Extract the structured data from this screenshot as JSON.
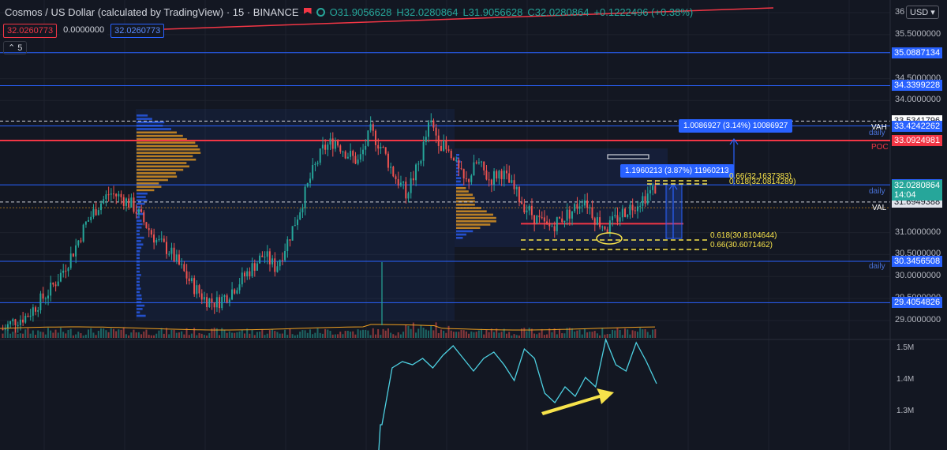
{
  "header": {
    "symbol": "Cosmos / US Dollar (calculated by TradingView) · 15 · BINANCE",
    "open": "O31.9056628",
    "high": "H32.0280864",
    "low": "L31.9056628",
    "close": "C32.0280864",
    "change": "+0.1222496 (+0.38%)"
  },
  "badges": {
    "a": "32.0260773",
    "b": "0.0000000",
    "c": "32.0260773"
  },
  "collapse_label": "5",
  "currency": "USD",
  "price_axis": {
    "ticks": [
      {
        "v": 36.0,
        "label": "36"
      },
      {
        "v": 35.5,
        "label": "35.5000000"
      },
      {
        "v": 34.5,
        "label": "34.5000000"
      },
      {
        "v": 34.0,
        "label": "34.0000000"
      },
      {
        "v": 31.0,
        "label": "31.0000000"
      },
      {
        "v": 30.5,
        "label": "30.5000000"
      },
      {
        "v": 30.0,
        "label": "30.0000000"
      },
      {
        "v": 29.5,
        "label": "29.5000000"
      },
      {
        "v": 29.0,
        "label": "29.0000000"
      }
    ],
    "price_labels": [
      {
        "v": 35.0887134,
        "label": "35.0887134",
        "style": "blue"
      },
      {
        "v": 34.3399228,
        "label": "34.3399228",
        "style": "blue"
      },
      {
        "v": 33.5341796,
        "label": "33.5341796",
        "style": "white"
      },
      {
        "v": 33.4242262,
        "label": "33.4242262",
        "style": "blue"
      },
      {
        "v": 33.0924981,
        "label": "33.0924981",
        "style": "red"
      },
      {
        "v": 32.0850073,
        "label": "32.0850073",
        "style": "blue"
      },
      {
        "v": 31.6949388,
        "label": "31.6949388",
        "style": "white2"
      },
      {
        "v": 30.3456508,
        "label": "30.3456508",
        "style": "blue"
      },
      {
        "v": 29.4054826,
        "label": "29.4054826",
        "style": "blue"
      }
    ],
    "last_price": {
      "v": 32.0280864,
      "label": "32.0280864",
      "countdown": "14:04"
    }
  },
  "volume_axis": {
    "ticks": [
      {
        "v": 1.5,
        "label": "1.5M"
      },
      {
        "v": 1.4,
        "label": "1.4M"
      },
      {
        "v": 1.3,
        "label": "1.3M"
      }
    ]
  },
  "side_labels": {
    "vah": "VAH",
    "val": "VAL",
    "poc": "POC",
    "daily": "daily"
  },
  "measure_boxes": {
    "upper": "1.0086927 (3.14%) 10086927",
    "lower": "1.1960213 (3.87%) 11960213"
  },
  "fib_labels": {
    "f066_top": "0.66(32.1637383)",
    "f0618_top": "0.618(32.0814289)",
    "f0618_bot": "0.618(30.8104644)",
    "f066_bot": "0.66(30.6071462)"
  },
  "colors": {
    "up": "#26a69a",
    "down": "#ef5350",
    "blue": "#2962ff",
    "red": "#f23645",
    "yellow": "#f7e34b",
    "orange": "#f0a020",
    "bg": "#131722"
  },
  "chart_data": {
    "type": "candlestick",
    "title": "Cosmos / US Dollar (calculated by TradingView)",
    "ylim": [
      28.5,
      36.1
    ],
    "horizontal_levels": [
      35.0887134,
      34.3399228,
      33.5341796,
      33.4242262,
      33.0924981,
      32.0850073,
      31.6949388,
      30.3456508,
      29.4054826
    ],
    "close_path": [
      28.8,
      29.0,
      29.1,
      29.4,
      29.7,
      30.1,
      30.6,
      31.2,
      31.6,
      31.9,
      31.8,
      31.6,
      31.2,
      30.8,
      30.6,
      30.2,
      29.8,
      29.5,
      29.4,
      29.6,
      29.9,
      30.2,
      30.5,
      30.2,
      30.8,
      31.5,
      32.3,
      32.9,
      33.1,
      32.8,
      32.6,
      33.3,
      32.9,
      32.3,
      31.9,
      32.5,
      33.5,
      33.0,
      32.6,
      32.1,
      32.6,
      32.2,
      32.4,
      32.0,
      31.6,
      31.3,
      31.1,
      31.3,
      31.5,
      31.8,
      31.3,
      31.1,
      31.4,
      31.6,
      31.8,
      32.0
    ],
    "volume_line_m": [
      1.26,
      1.44,
      1.46,
      1.45,
      1.47,
      1.44,
      1.48,
      1.51,
      1.47,
      1.43,
      1.47,
      1.49,
      1.45,
      1.4,
      1.5,
      1.47,
      1.36,
      1.33,
      1.38,
      1.35,
      1.41,
      1.38,
      1.53,
      1.45,
      1.43,
      1.52,
      1.46,
      1.39
    ]
  }
}
